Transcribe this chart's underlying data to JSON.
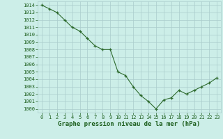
{
  "x": [
    0,
    1,
    2,
    3,
    4,
    5,
    6,
    7,
    8,
    9,
    10,
    11,
    12,
    13,
    14,
    15,
    16,
    17,
    18,
    19,
    20,
    21,
    22,
    23
  ],
  "y": [
    1014.0,
    1013.5,
    1013.0,
    1012.0,
    1011.0,
    1010.5,
    1009.5,
    1008.5,
    1008.0,
    1008.0,
    1005.0,
    1004.5,
    1003.0,
    1001.8,
    1001.0,
    1000.0,
    1001.2,
    1001.5,
    1002.5,
    1002.0,
    1002.5,
    1003.0,
    1003.5,
    1004.2
  ],
  "line_color": "#2d6a2d",
  "marker_color": "#2d6a2d",
  "bg_color": "#cceee8",
  "grid_color": "#aacccc",
  "label_color": "#1a5c1a",
  "xlabel": "Graphe pression niveau de la mer (hPa)",
  "ylim": [
    999.5,
    1014.5
  ],
  "xlim": [
    -0.5,
    23.5
  ],
  "yticks": [
    1000,
    1001,
    1002,
    1003,
    1004,
    1005,
    1006,
    1007,
    1008,
    1009,
    1010,
    1011,
    1012,
    1013,
    1014
  ],
  "xticks": [
    0,
    1,
    2,
    3,
    4,
    5,
    6,
    7,
    8,
    9,
    10,
    11,
    12,
    13,
    14,
    15,
    16,
    17,
    18,
    19,
    20,
    21,
    22,
    23
  ],
  "xlabel_fontsize": 6.5,
  "tick_fontsize": 5.0,
  "marker_size": 3.5,
  "line_width": 0.8
}
